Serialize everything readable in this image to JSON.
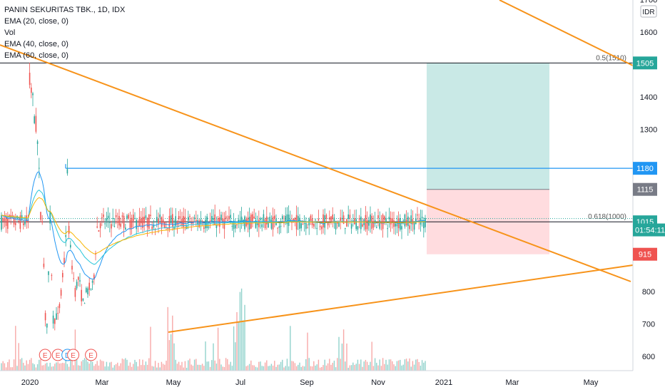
{
  "legend": {
    "symbol": "PANIN SEKURITAS TBK., 1D, IDX",
    "ema20": "EMA (20, close, 0)",
    "vol": "Vol",
    "ema40": "EMA (40, close, 0)",
    "ema60": "EMA (60, close, 0)"
  },
  "currency_label": "IDR",
  "colors": {
    "up": "#26a69a",
    "down": "#ef5350",
    "trendline": "#f7931a",
    "blue_line": "#2196f3",
    "ema20": "#2196f3",
    "ema40": "#26c6da",
    "ema60": "#f7b500",
    "target_zone": "#b2dfdb",
    "stop_zone": "#ffcdd2"
  },
  "chart_data": {
    "type": "candlestick",
    "symbol": "PANIN SEKURITAS TBK.",
    "interval": "1D",
    "exchange": "IDX",
    "y_axis": {
      "ticks": [
        600,
        700,
        800,
        900,
        1000,
        1100,
        1200,
        1300,
        1400,
        1500,
        1600,
        1700
      ],
      "labels": [
        "600",
        "700",
        "800",
        "",
        "",
        "",
        "",
        "1300",
        "1400",
        "",
        "1600",
        "1700"
      ],
      "range": [
        560,
        1730
      ]
    },
    "x_axis": {
      "ticks": [
        "2020",
        "Mar",
        "May",
        "Jul",
        "Sep",
        "Nov",
        "2021",
        "Mar",
        "May"
      ]
    },
    "price_tags": [
      {
        "value": 1505,
        "label": "1505",
        "color": "#26a69a"
      },
      {
        "value": 1180,
        "label": "1180",
        "color": "#2196f3"
      },
      {
        "value": 1115,
        "label": "1115",
        "color": "#787b86"
      },
      {
        "value": 1015,
        "label": "1015",
        "color": "#26a69a"
      },
      {
        "value": 990,
        "label": "01:54:11",
        "color": "#26a69a"
      },
      {
        "value": 915,
        "label": "915",
        "color": "#ef5350"
      }
    ],
    "fib_levels": [
      {
        "value": 1505,
        "label": "0.5(1510)"
      },
      {
        "value": 1015,
        "label": "0.618(1000)"
      }
    ],
    "horizontal_line": 1180,
    "position": {
      "entry": 1115,
      "target": 1505,
      "stop": 915
    },
    "trendlines": [
      {
        "from": [
          "2019-12",
          1525
        ],
        "to": [
          "2021-05",
          830
        ]
      },
      {
        "from": [
          "2020-04-28",
          665
        ],
        "to": [
          "2021-06",
          870
        ]
      },
      {
        "from": [
          "2020-10",
          1790
        ],
        "to": [
          "2021-06",
          1505
        ]
      }
    ],
    "events": [
      {
        "label": "E",
        "date": "2020-03-20"
      },
      {
        "label": "E",
        "date": "2020-05-20"
      },
      {
        "label": "D",
        "date": "2020-07-05"
      },
      {
        "label": "E",
        "date": "2020-08-01"
      },
      {
        "label": "E",
        "date": "2020-10-25"
      }
    ],
    "price_path": [
      [
        "2020-01-01",
        1460
      ],
      [
        "2020-01-15",
        1420
      ],
      [
        "2020-02-01",
        1330
      ],
      [
        "2020-02-10",
        1290
      ],
      [
        "2020-02-18",
        1200
      ],
      [
        "2020-02-25",
        1080
      ],
      [
        "2020-03-02",
        980
      ],
      [
        "2020-03-08",
        1060
      ],
      [
        "2020-03-14",
        870
      ],
      [
        "2020-03-20",
        740
      ],
      [
        "2020-03-26",
        650
      ],
      [
        "2020-04-02",
        780
      ],
      [
        "2020-04-08",
        900
      ],
      [
        "2020-04-12",
        1040
      ],
      [
        "2020-04-18",
        920
      ],
      [
        "2020-04-24",
        760
      ],
      [
        "2020-04-30",
        690
      ],
      [
        "2020-05-08",
        730
      ],
      [
        "2020-05-20",
        720
      ],
      [
        "2020-06-01",
        770
      ],
      [
        "2020-06-10",
        830
      ],
      [
        "2020-06-20",
        900
      ],
      [
        "2020-06-28",
        1000
      ],
      [
        "2020-07-03",
        1170
      ],
      [
        "2020-07-08",
        1110
      ],
      [
        "2020-07-13",
        950
      ],
      [
        "2020-07-20",
        920
      ],
      [
        "2020-08-01",
        850
      ],
      [
        "2020-08-10",
        800
      ],
      [
        "2020-08-25",
        840
      ],
      [
        "2020-09-05",
        810
      ],
      [
        "2020-09-15",
        760
      ],
      [
        "2020-09-25",
        780
      ],
      [
        "2020-10-05",
        800
      ],
      [
        "2020-10-20",
        810
      ],
      [
        "2020-11-01",
        815
      ],
      [
        "2020-11-10",
        860
      ],
      [
        "2020-11-18",
        960
      ],
      [
        "2020-11-25",
        1010
      ],
      [
        "2020-12-02",
        990
      ],
      [
        "2020-12-08",
        1015
      ]
    ]
  }
}
